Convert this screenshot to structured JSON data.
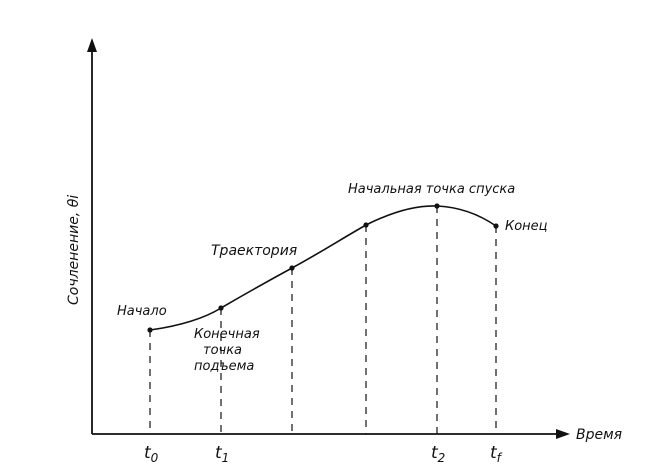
{
  "axes": {
    "y_label": "Сочленение, θi",
    "x_label": "Время"
  },
  "ticks": {
    "t0": "t0",
    "t1": "t1",
    "t2": "t2",
    "tf": "tf"
  },
  "annotations": {
    "start": "Начало",
    "liftoff_line1": "Конечная",
    "liftoff_line2": "точка",
    "liftoff_line3": "подъема",
    "trajectory": "Траектория",
    "setdown": "Начальная точка спуска",
    "end": "Конец"
  }
}
